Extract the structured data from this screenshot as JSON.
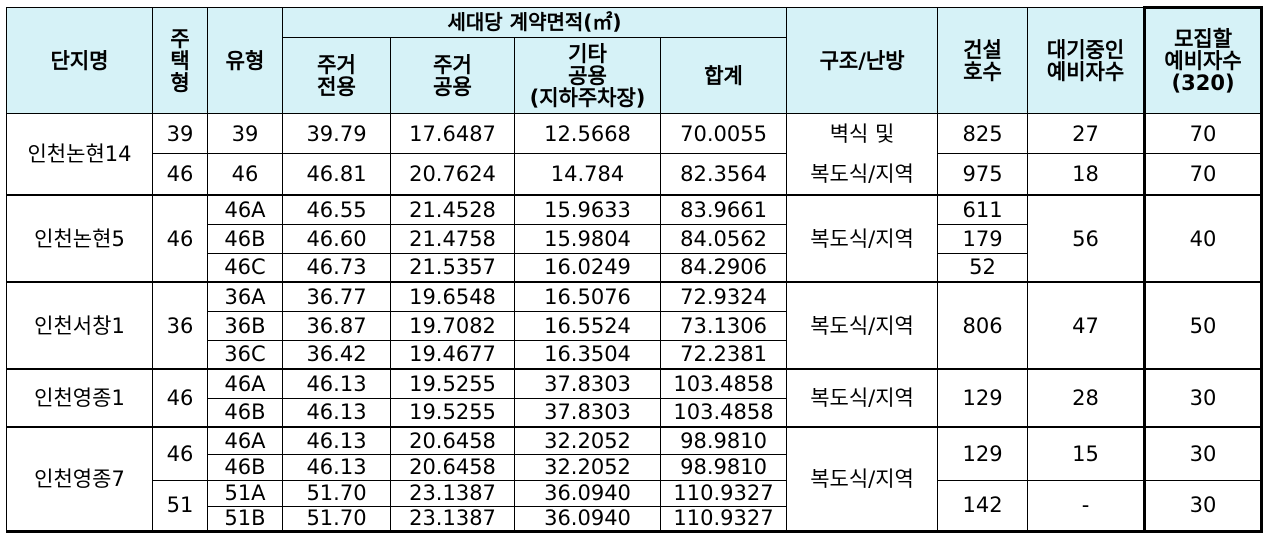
{
  "headers": {
    "complex": "단지명",
    "housing_type": "주\n택\n형",
    "type": "유형",
    "area_group": "세대당 계약면적(㎡)",
    "res_exclusive": "주거\n전용",
    "res_common": "주거\n공용",
    "other_common": "기타\n공용\n(지하주차장)",
    "total": "합계",
    "structure": "구조/난방",
    "built_units": "건설\n호수",
    "waiting": "대기중인\n예비자수",
    "recruit": "모집할\n예비자수\n(320)"
  },
  "groups": [
    {
      "complex": "인천논현14",
      "structure": "벽식 및\n복도식/지역",
      "waiting": "27 / 18",
      "rows": [
        {
          "housing": "39",
          "type": "39",
          "exclusive": "39.79",
          "common": "17.6487",
          "other": "12.5668",
          "total": "70.0055",
          "units": "825",
          "waiting": "27",
          "recruit": "70"
        },
        {
          "housing": "46",
          "type": "46",
          "exclusive": "46.81",
          "common": "20.7624",
          "other": "14.784",
          "total": "82.3564",
          "units": "975",
          "waiting": "18",
          "recruit": "70"
        }
      ]
    },
    {
      "complex": "인천논현5",
      "housing": "46",
      "structure": "복도식/지역",
      "waiting": "56",
      "recruit": "40",
      "rows": [
        {
          "type": "46A",
          "exclusive": "46.55",
          "common": "21.4528",
          "other": "15.9633",
          "total": "83.9661",
          "units": "611"
        },
        {
          "type": "46B",
          "exclusive": "46.60",
          "common": "21.4758",
          "other": "15.9804",
          "total": "84.0562",
          "units": "179"
        },
        {
          "type": "46C",
          "exclusive": "46.73",
          "common": "21.5357",
          "other": "16.0249",
          "total": "84.2906",
          "units": "52"
        }
      ]
    },
    {
      "complex": "인천서창1",
      "housing": "36",
      "structure": "복도식/지역",
      "units": "806",
      "waiting": "47",
      "recruit": "50",
      "rows": [
        {
          "type": "36A",
          "exclusive": "36.77",
          "common": "19.6548",
          "other": "16.5076",
          "total": "72.9324"
        },
        {
          "type": "36B",
          "exclusive": "36.87",
          "common": "19.7082",
          "other": "16.5524",
          "total": "73.1306"
        },
        {
          "type": "36C",
          "exclusive": "36.42",
          "common": "19.4677",
          "other": "16.3504",
          "total": "72.2381"
        }
      ]
    },
    {
      "complex": "인천영종1",
      "housing": "46",
      "structure": "복도식/지역",
      "units": "129",
      "waiting": "28",
      "recruit": "30",
      "rows": [
        {
          "type": "46A",
          "exclusive": "46.13",
          "common": "19.5255",
          "other": "37.8303",
          "total": "103.4858"
        },
        {
          "type": "46B",
          "exclusive": "46.13",
          "common": "19.5255",
          "other": "37.8303",
          "total": "103.4858"
        }
      ]
    },
    {
      "complex": "인천영종7",
      "structure": "복도식/지역",
      "sub": [
        {
          "housing": "46",
          "units": "129",
          "waiting": "15",
          "recruit": "30",
          "rows": [
            {
              "type": "46A",
              "exclusive": "46.13",
              "common": "20.6458",
              "other": "32.2052",
              "total": "98.9810"
            },
            {
              "type": "46B",
              "exclusive": "46.13",
              "common": "20.6458",
              "other": "32.2052",
              "total": "98.9810"
            }
          ]
        },
        {
          "housing": "51",
          "units": "142",
          "waiting": "-",
          "recruit": "30",
          "rows": [
            {
              "type": "51A",
              "exclusive": "51.70",
              "common": "23.1387",
              "other": "36.0940",
              "total": "110.9327"
            },
            {
              "type": "51B",
              "exclusive": "51.70",
              "common": "23.1387",
              "other": "36.0940",
              "total": "110.9327"
            }
          ]
        }
      ]
    }
  ]
}
